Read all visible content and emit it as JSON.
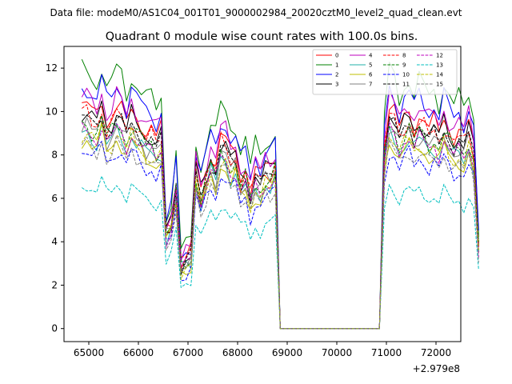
{
  "figure": {
    "suptitle": "Data file: modeM0/AS1C04_001T01_9000002984_20020cztM0_level2_quad_clean.evt",
    "offset_label": "+2.979e8"
  },
  "chart_data": {
    "type": "line",
    "title": "Quadrant 0 module wise count rates with 100.0s bins.",
    "xlabel": "",
    "ylabel": "",
    "x_offset": 297900000,
    "xlim": [
      64500,
      72500
    ],
    "ylim": [
      -0.6,
      13.0
    ],
    "xticks": [
      65000,
      66000,
      67000,
      68000,
      69000,
      70000,
      71000,
      72000
    ],
    "xtick_labels": [
      "65000",
      "66000",
      "67000",
      "68000",
      "69000",
      "70000",
      "71000",
      "72000"
    ],
    "yticks": [
      0,
      2,
      4,
      6,
      8,
      10,
      12
    ],
    "ytick_labels": [
      "0",
      "2",
      "4",
      "6",
      "8",
      "10",
      "12"
    ],
    "legend_position": "top-right",
    "x_start": 64860,
    "bin_width": 100,
    "profile": [
      1.0,
      1.01,
      0.97,
      0.96,
      1.04,
      0.93,
      0.96,
      1.01,
      0.98,
      0.92,
      0.99,
      0.95,
      0.93,
      0.89,
      0.9,
      0.86,
      0.9,
      0.46,
      0.5,
      0.67,
      0.3,
      0.32,
      0.34,
      0.75,
      0.63,
      0.72,
      0.8,
      0.74,
      0.87,
      0.85,
      0.78,
      0.81,
      0.69,
      0.73,
      0.63,
      0.71,
      0.68,
      0.74,
      0.73,
      0.78,
      0.0,
      0.0,
      0.0,
      0.0,
      0.0,
      0.0,
      0.0,
      0.0,
      0.0,
      0.0,
      0.0,
      0.0,
      0.0,
      0.0,
      0.0,
      0.0,
      0.0,
      0.0,
      0.0,
      0.0,
      0.0,
      0.84,
      1.0,
      0.97,
      0.9,
      0.95,
      0.98,
      0.92,
      0.96,
      0.94,
      0.9,
      0.93,
      0.89,
      0.96,
      0.91,
      0.87,
      0.89,
      0.86,
      0.93,
      0.83,
      0.4
    ],
    "series": [
      {
        "name": "0",
        "color": "#ff0000",
        "dash": "solid",
        "scale": 10.2
      },
      {
        "name": "1",
        "color": "#008000",
        "dash": "solid",
        "scale": 11.8
      },
      {
        "name": "2",
        "color": "#0000ff",
        "dash": "solid",
        "scale": 11.1
      },
      {
        "name": "3",
        "color": "#000000",
        "dash": "solid",
        "scale": 9.9
      },
      {
        "name": "4",
        "color": "#bf00bf",
        "dash": "solid",
        "scale": 10.6
      },
      {
        "name": "5",
        "color": "#20b2aa",
        "dash": "solid",
        "scale": 9.0
      },
      {
        "name": "6",
        "color": "#bfbf00",
        "dash": "solid",
        "scale": 8.7
      },
      {
        "name": "7",
        "color": "#808080",
        "dash": "solid",
        "scale": 9.3
      },
      {
        "name": "8",
        "color": "#ff0000",
        "dash": "dashed",
        "scale": 9.8
      },
      {
        "name": "9",
        "color": "#008000",
        "dash": "dashed",
        "scale": 9.4
      },
      {
        "name": "10",
        "color": "#0000ff",
        "dash": "dashed",
        "scale": 8.2
      },
      {
        "name": "11",
        "color": "#000000",
        "dash": "dashed",
        "scale": 9.6
      },
      {
        "name": "12",
        "color": "#bf00bf",
        "dash": "dashed",
        "scale": 9.1
      },
      {
        "name": "13",
        "color": "#00bfbf",
        "dash": "dashed",
        "scale": 6.6
      },
      {
        "name": "14",
        "color": "#bfbf00",
        "dash": "dashed",
        "scale": 8.9
      },
      {
        "name": "15",
        "color": "#808080",
        "dash": "dashed",
        "scale": 8.4
      }
    ]
  }
}
